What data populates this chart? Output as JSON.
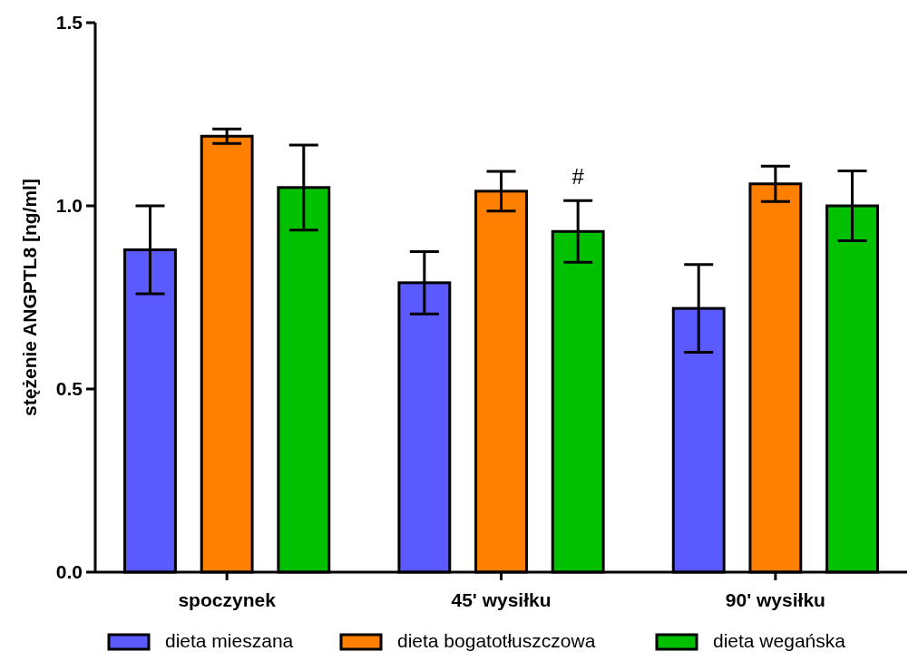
{
  "chart_data": {
    "type": "bar",
    "ylabel": "stężenie ANGPTL8 [ng/ml]",
    "categories": [
      "spoczynek",
      "45' wysiłku",
      "90' wysiłku"
    ],
    "series": [
      {
        "name": "dieta mieszana",
        "color": "#5a5aff",
        "values": [
          0.88,
          0.79,
          0.72
        ],
        "errors": [
          0.12,
          0.085,
          0.12
        ]
      },
      {
        "name": "dieta bogatotłuszczowa",
        "color": "#ff8000",
        "values": [
          1.19,
          1.04,
          1.06
        ],
        "errors": [
          0.02,
          0.054,
          0.048
        ]
      },
      {
        "name": "dieta wegańska",
        "color": "#00c000",
        "values": [
          1.05,
          0.93,
          1.0
        ],
        "errors": [
          0.116,
          0.084,
          0.095
        ]
      }
    ],
    "ylim": [
      0,
      1.5
    ],
    "yticks": [
      {
        "value": 0,
        "label": "0.0"
      },
      {
        "value": 0.5,
        "label": "0.5"
      },
      {
        "value": 1,
        "label": "1.0"
      },
      {
        "value": 1.5,
        "label": "1.5"
      }
    ],
    "annotations": [
      "#"
    ],
    "legend": "bottom"
  }
}
